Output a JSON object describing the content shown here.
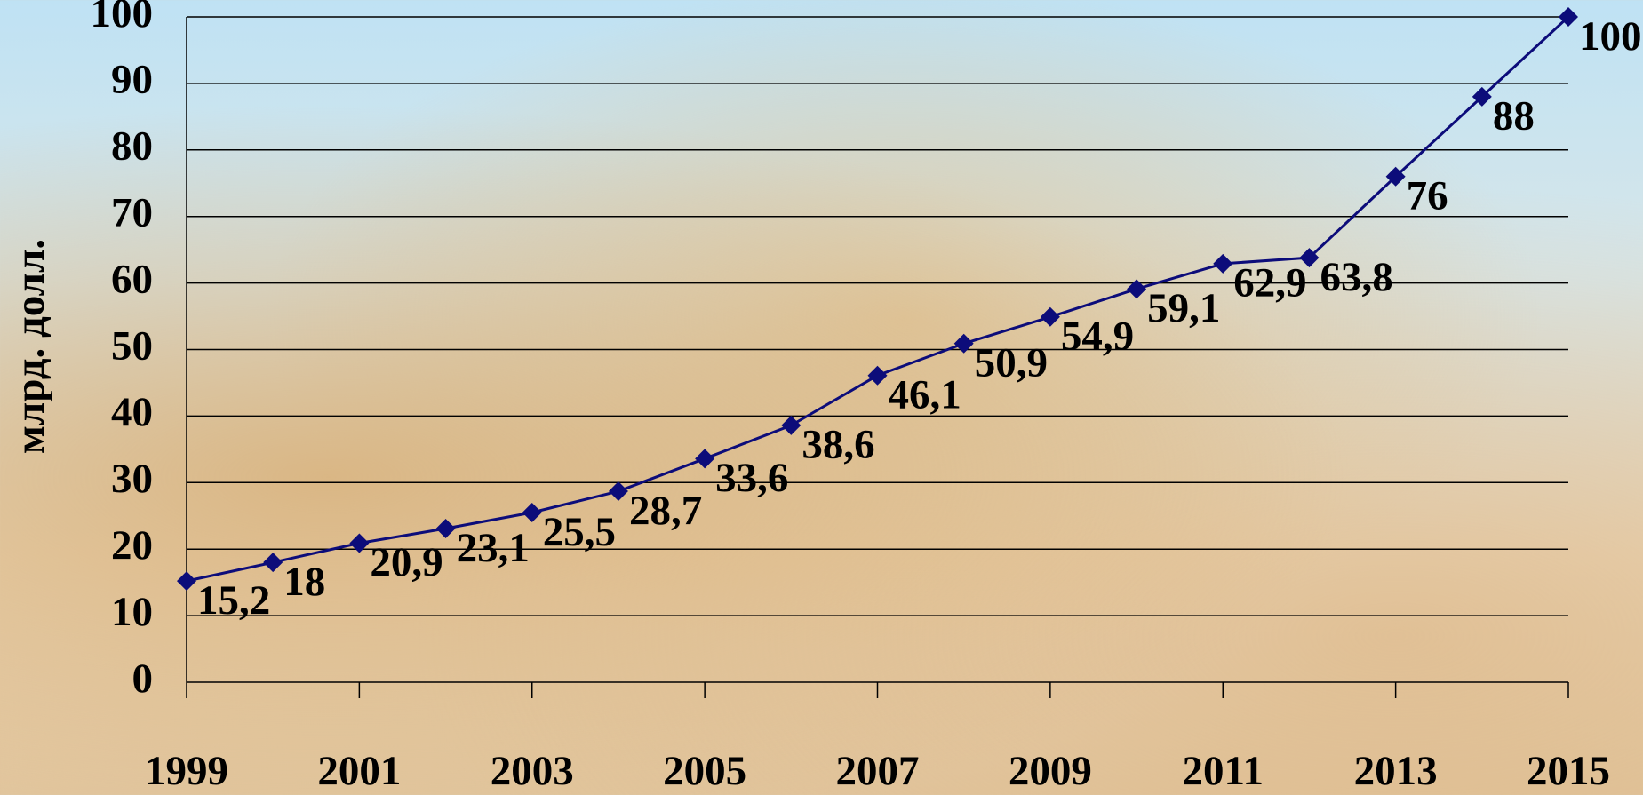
{
  "chart_data": {
    "type": "line",
    "y_label": "млрд. долл.",
    "x": [
      1999,
      2000,
      2001,
      2002,
      2003,
      2004,
      2005,
      2006,
      2007,
      2008,
      2009,
      2010,
      2011,
      2012,
      2013,
      2014,
      2015
    ],
    "xlim": [
      1999,
      2015
    ],
    "xticks": [
      1999,
      2001,
      2003,
      2005,
      2007,
      2009,
      2011,
      2013,
      2015
    ],
    "ylim": [
      0,
      100
    ],
    "yticks": [
      0,
      10,
      20,
      30,
      40,
      50,
      60,
      70,
      80,
      90,
      100
    ],
    "grid": true,
    "series": [
      {
        "color": "#0c0c7a",
        "values": [
          15.2,
          18,
          20.9,
          23.1,
          25.5,
          28.7,
          33.6,
          38.6,
          46.1,
          50.9,
          54.9,
          59.1,
          62.9,
          63.8,
          76,
          88,
          100
        ],
        "value_labels": [
          "15,2",
          "18",
          "20,9",
          "23,1",
          "25,5",
          "28,7",
          "33,6",
          "38,6",
          "46,1",
          "50,9",
          "54,9",
          "59,1",
          "62,9",
          "63,8",
          "76",
          "88",
          "100"
        ]
      }
    ]
  }
}
